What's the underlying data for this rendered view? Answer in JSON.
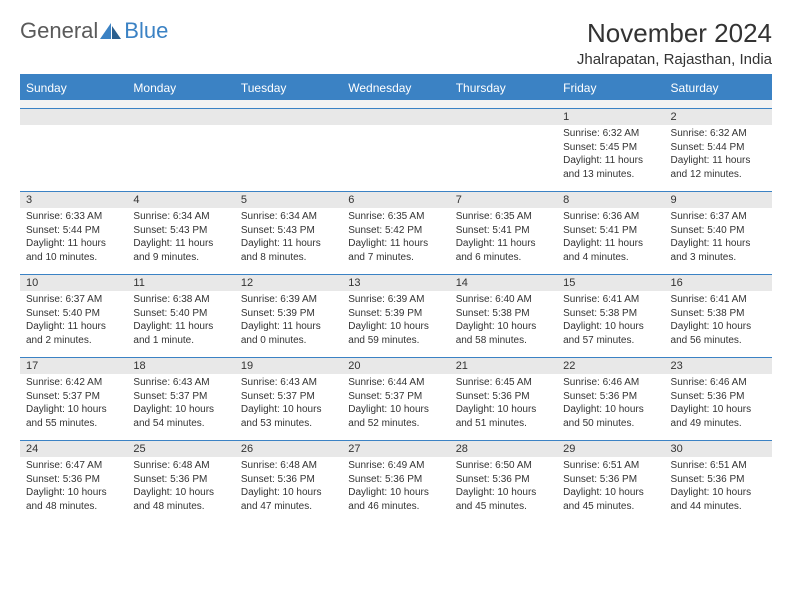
{
  "logo": {
    "general": "General",
    "blue": "Blue"
  },
  "title": "November 2024",
  "location": "Jhalrapatan, Rajasthan, India",
  "colors": {
    "header_bg": "#3b82c4",
    "daynum_bg": "#e8e8e8",
    "border": "#3b82c4",
    "text": "#333333",
    "logo_gray": "#5a5a5a",
    "logo_blue": "#3b82c4"
  },
  "day_names": [
    "Sunday",
    "Monday",
    "Tuesday",
    "Wednesday",
    "Thursday",
    "Friday",
    "Saturday"
  ],
  "weeks": [
    [
      {
        "blank": true
      },
      {
        "blank": true
      },
      {
        "blank": true
      },
      {
        "blank": true
      },
      {
        "blank": true
      },
      {
        "n": "1",
        "sr": "Sunrise: 6:32 AM",
        "ss": "Sunset: 5:45 PM",
        "dl1": "Daylight: 11 hours",
        "dl2": "and 13 minutes."
      },
      {
        "n": "2",
        "sr": "Sunrise: 6:32 AM",
        "ss": "Sunset: 5:44 PM",
        "dl1": "Daylight: 11 hours",
        "dl2": "and 12 minutes."
      }
    ],
    [
      {
        "n": "3",
        "sr": "Sunrise: 6:33 AM",
        "ss": "Sunset: 5:44 PM",
        "dl1": "Daylight: 11 hours",
        "dl2": "and 10 minutes."
      },
      {
        "n": "4",
        "sr": "Sunrise: 6:34 AM",
        "ss": "Sunset: 5:43 PM",
        "dl1": "Daylight: 11 hours",
        "dl2": "and 9 minutes."
      },
      {
        "n": "5",
        "sr": "Sunrise: 6:34 AM",
        "ss": "Sunset: 5:43 PM",
        "dl1": "Daylight: 11 hours",
        "dl2": "and 8 minutes."
      },
      {
        "n": "6",
        "sr": "Sunrise: 6:35 AM",
        "ss": "Sunset: 5:42 PM",
        "dl1": "Daylight: 11 hours",
        "dl2": "and 7 minutes."
      },
      {
        "n": "7",
        "sr": "Sunrise: 6:35 AM",
        "ss": "Sunset: 5:41 PM",
        "dl1": "Daylight: 11 hours",
        "dl2": "and 6 minutes."
      },
      {
        "n": "8",
        "sr": "Sunrise: 6:36 AM",
        "ss": "Sunset: 5:41 PM",
        "dl1": "Daylight: 11 hours",
        "dl2": "and 4 minutes."
      },
      {
        "n": "9",
        "sr": "Sunrise: 6:37 AM",
        "ss": "Sunset: 5:40 PM",
        "dl1": "Daylight: 11 hours",
        "dl2": "and 3 minutes."
      }
    ],
    [
      {
        "n": "10",
        "sr": "Sunrise: 6:37 AM",
        "ss": "Sunset: 5:40 PM",
        "dl1": "Daylight: 11 hours",
        "dl2": "and 2 minutes."
      },
      {
        "n": "11",
        "sr": "Sunrise: 6:38 AM",
        "ss": "Sunset: 5:40 PM",
        "dl1": "Daylight: 11 hours",
        "dl2": "and 1 minute."
      },
      {
        "n": "12",
        "sr": "Sunrise: 6:39 AM",
        "ss": "Sunset: 5:39 PM",
        "dl1": "Daylight: 11 hours",
        "dl2": "and 0 minutes."
      },
      {
        "n": "13",
        "sr": "Sunrise: 6:39 AM",
        "ss": "Sunset: 5:39 PM",
        "dl1": "Daylight: 10 hours",
        "dl2": "and 59 minutes."
      },
      {
        "n": "14",
        "sr": "Sunrise: 6:40 AM",
        "ss": "Sunset: 5:38 PM",
        "dl1": "Daylight: 10 hours",
        "dl2": "and 58 minutes."
      },
      {
        "n": "15",
        "sr": "Sunrise: 6:41 AM",
        "ss": "Sunset: 5:38 PM",
        "dl1": "Daylight: 10 hours",
        "dl2": "and 57 minutes."
      },
      {
        "n": "16",
        "sr": "Sunrise: 6:41 AM",
        "ss": "Sunset: 5:38 PM",
        "dl1": "Daylight: 10 hours",
        "dl2": "and 56 minutes."
      }
    ],
    [
      {
        "n": "17",
        "sr": "Sunrise: 6:42 AM",
        "ss": "Sunset: 5:37 PM",
        "dl1": "Daylight: 10 hours",
        "dl2": "and 55 minutes."
      },
      {
        "n": "18",
        "sr": "Sunrise: 6:43 AM",
        "ss": "Sunset: 5:37 PM",
        "dl1": "Daylight: 10 hours",
        "dl2": "and 54 minutes."
      },
      {
        "n": "19",
        "sr": "Sunrise: 6:43 AM",
        "ss": "Sunset: 5:37 PM",
        "dl1": "Daylight: 10 hours",
        "dl2": "and 53 minutes."
      },
      {
        "n": "20",
        "sr": "Sunrise: 6:44 AM",
        "ss": "Sunset: 5:37 PM",
        "dl1": "Daylight: 10 hours",
        "dl2": "and 52 minutes."
      },
      {
        "n": "21",
        "sr": "Sunrise: 6:45 AM",
        "ss": "Sunset: 5:36 PM",
        "dl1": "Daylight: 10 hours",
        "dl2": "and 51 minutes."
      },
      {
        "n": "22",
        "sr": "Sunrise: 6:46 AM",
        "ss": "Sunset: 5:36 PM",
        "dl1": "Daylight: 10 hours",
        "dl2": "and 50 minutes."
      },
      {
        "n": "23",
        "sr": "Sunrise: 6:46 AM",
        "ss": "Sunset: 5:36 PM",
        "dl1": "Daylight: 10 hours",
        "dl2": "and 49 minutes."
      }
    ],
    [
      {
        "n": "24",
        "sr": "Sunrise: 6:47 AM",
        "ss": "Sunset: 5:36 PM",
        "dl1": "Daylight: 10 hours",
        "dl2": "and 48 minutes."
      },
      {
        "n": "25",
        "sr": "Sunrise: 6:48 AM",
        "ss": "Sunset: 5:36 PM",
        "dl1": "Daylight: 10 hours",
        "dl2": "and 48 minutes."
      },
      {
        "n": "26",
        "sr": "Sunrise: 6:48 AM",
        "ss": "Sunset: 5:36 PM",
        "dl1": "Daylight: 10 hours",
        "dl2": "and 47 minutes."
      },
      {
        "n": "27",
        "sr": "Sunrise: 6:49 AM",
        "ss": "Sunset: 5:36 PM",
        "dl1": "Daylight: 10 hours",
        "dl2": "and 46 minutes."
      },
      {
        "n": "28",
        "sr": "Sunrise: 6:50 AM",
        "ss": "Sunset: 5:36 PM",
        "dl1": "Daylight: 10 hours",
        "dl2": "and 45 minutes."
      },
      {
        "n": "29",
        "sr": "Sunrise: 6:51 AM",
        "ss": "Sunset: 5:36 PM",
        "dl1": "Daylight: 10 hours",
        "dl2": "and 45 minutes."
      },
      {
        "n": "30",
        "sr": "Sunrise: 6:51 AM",
        "ss": "Sunset: 5:36 PM",
        "dl1": "Daylight: 10 hours",
        "dl2": "and 44 minutes."
      }
    ]
  ]
}
